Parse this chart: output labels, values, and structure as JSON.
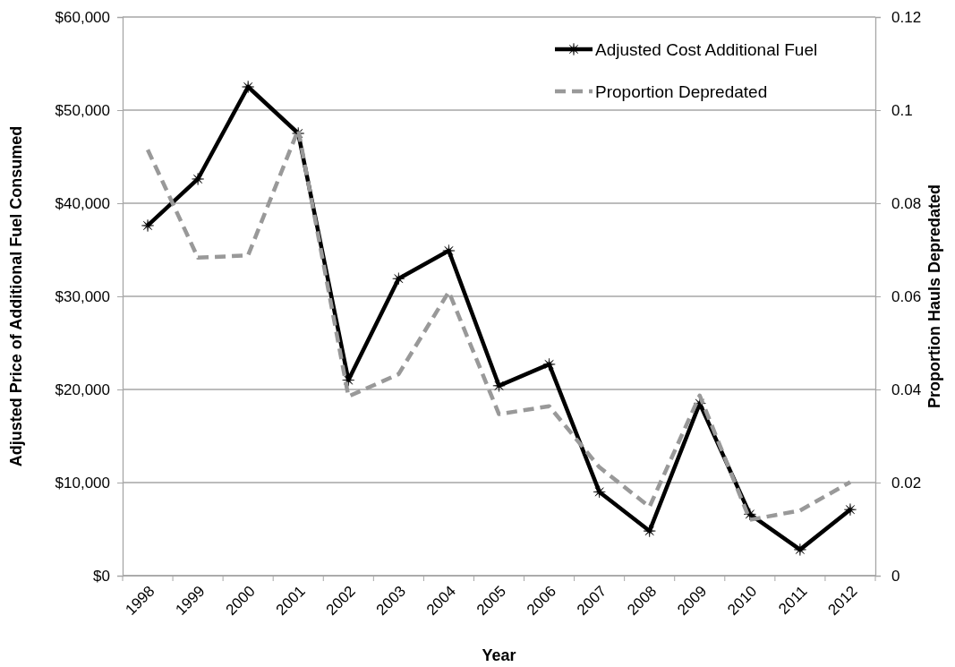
{
  "chart_data": {
    "type": "line",
    "xlabel": "Year",
    "ylabel": "Adjusted Price of Additional Fuel Consumed",
    "y2label": "Proportion Hauls Depredated",
    "categories": [
      "1998",
      "1999",
      "2000",
      "2001",
      "2002",
      "2003",
      "2004",
      "2005",
      "2006",
      "2007",
      "2008",
      "2009",
      "2010",
      "2011",
      "2012"
    ],
    "series": [
      {
        "name": "Adjusted Cost Additional Fuel",
        "color": "#000000",
        "marker": "star",
        "line_style": "solid",
        "values": [
          37600,
          42600,
          52500,
          47500,
          21000,
          31900,
          34900,
          20400,
          22700,
          9000,
          4800,
          18500,
          6600,
          2800,
          7100
        ]
      },
      {
        "name": "Proportion Depredated",
        "color": "#999999",
        "marker": "none",
        "line_style": "dashed",
        "axis": "y2",
        "values": [
          0.0915,
          0.0683,
          0.0688,
          0.0958,
          0.0385,
          0.0433,
          0.061,
          0.0347,
          0.0364,
          0.0233,
          0.0148,
          0.0387,
          0.012,
          0.014,
          0.0201
        ]
      }
    ],
    "ylim": [
      0,
      60000
    ],
    "yticks": [
      {
        "value": 0,
        "label": "$0"
      },
      {
        "value": 10000,
        "label": "$10,000"
      },
      {
        "value": 20000,
        "label": "$20,000"
      },
      {
        "value": 30000,
        "label": "$30,000"
      },
      {
        "value": 40000,
        "label": "$40,000"
      },
      {
        "value": 50000,
        "label": "$50,000"
      },
      {
        "value": 60000,
        "label": "$60,000"
      }
    ],
    "y2lim": [
      0,
      0.12
    ],
    "y2ticks": [
      0,
      {
        "value": 0.02,
        "label": "0.02"
      },
      {
        "value": 0.04,
        "label": "0.04"
      },
      {
        "value": 0.06,
        "label": "0.06"
      },
      {
        "value": 0.08,
        "label": "0.08"
      },
      {
        "value": 0.1,
        "label": "0.1"
      },
      {
        "value": 0.12,
        "label": "0.12"
      }
    ],
    "grid": "y",
    "legend": "top right"
  }
}
